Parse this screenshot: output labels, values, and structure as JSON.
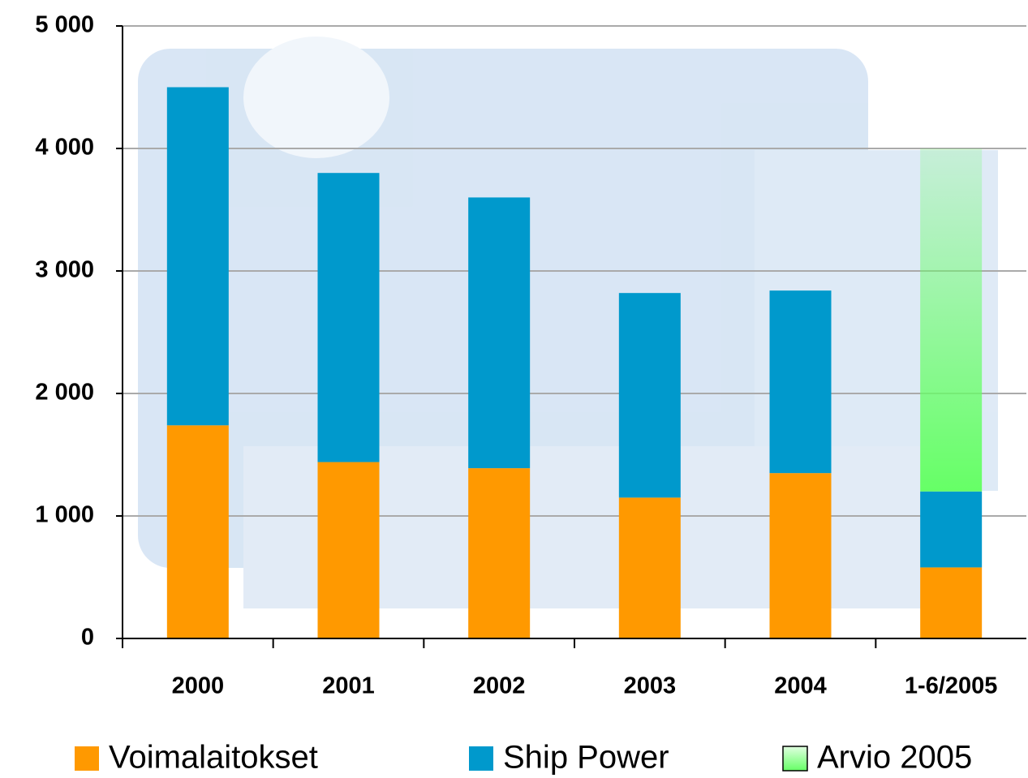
{
  "chart_data": {
    "type": "stacked_bar",
    "categories": [
      "2000",
      "2001",
      "2002",
      "2003",
      "2004",
      "1-6/2005"
    ],
    "series": [
      {
        "name": "Voimalaitokset",
        "color": "#ff9900",
        "values": [
          1740,
          1440,
          1390,
          1150,
          1350,
          580
        ]
      },
      {
        "name": "Ship Power",
        "color": "#0099cc",
        "values": [
          2760,
          2360,
          2210,
          1670,
          1490,
          620
        ]
      },
      {
        "name": "Arvio 2005",
        "color": "#66ff66",
        "values": [
          null,
          null,
          null,
          null,
          null,
          2800
        ]
      }
    ],
    "ylim": [
      0,
      5000
    ],
    "yticks": [
      0,
      {
        "value": 1000,
        "label": "1 000"
      },
      {
        "value": 2000,
        "label": "2 000"
      },
      {
        "value": 3000,
        "label": "3 000"
      },
      {
        "value": 4000,
        "label": "4 000"
      },
      {
        "value": 5000,
        "label": "5 000"
      }
    ],
    "grid": true
  }
}
